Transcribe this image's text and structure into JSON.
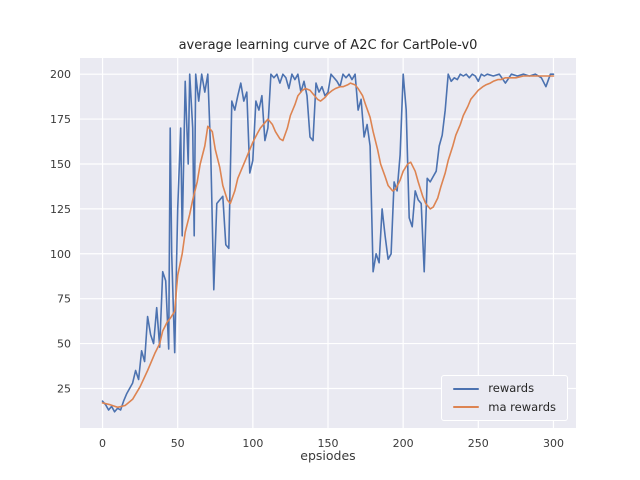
{
  "chart_data": {
    "type": "line",
    "title": "average learning curve of A2C for CartPole-v0",
    "xlabel": "epsiodes",
    "ylabel": "",
    "xlim": [
      -15,
      315
    ],
    "ylim": [
      3,
      209
    ],
    "xticks": [
      0,
      50,
      100,
      150,
      200,
      250,
      300
    ],
    "yticks": [
      25,
      50,
      75,
      100,
      125,
      150,
      175,
      200
    ],
    "grid": true,
    "legend_position": "lower right",
    "background_color": "#eaeaf2",
    "grid_color": "#ffffff",
    "series": [
      {
        "name": "rewards",
        "color": "#4c72b0",
        "points": [
          [
            0,
            18
          ],
          [
            2,
            16
          ],
          [
            4,
            13
          ],
          [
            6,
            15
          ],
          [
            8,
            12
          ],
          [
            10,
            14
          ],
          [
            12,
            13
          ],
          [
            14,
            18
          ],
          [
            16,
            22
          ],
          [
            18,
            25
          ],
          [
            20,
            28
          ],
          [
            22,
            35
          ],
          [
            24,
            30
          ],
          [
            26,
            46
          ],
          [
            28,
            40
          ],
          [
            30,
            65
          ],
          [
            32,
            55
          ],
          [
            34,
            50
          ],
          [
            36,
            70
          ],
          [
            38,
            48
          ],
          [
            40,
            90
          ],
          [
            42,
            85
          ],
          [
            44,
            47
          ],
          [
            45,
            170
          ],
          [
            46,
            100
          ],
          [
            48,
            45
          ],
          [
            50,
            125
          ],
          [
            52,
            170
          ],
          [
            53,
            110
          ],
          [
            55,
            196
          ],
          [
            57,
            150
          ],
          [
            58,
            200
          ],
          [
            60,
            170
          ],
          [
            61,
            110
          ],
          [
            62,
            200
          ],
          [
            64,
            185
          ],
          [
            66,
            200
          ],
          [
            68,
            190
          ],
          [
            70,
            200
          ],
          [
            72,
            155
          ],
          [
            74,
            80
          ],
          [
            76,
            128
          ],
          [
            78,
            130
          ],
          [
            80,
            132
          ],
          [
            82,
            105
          ],
          [
            84,
            103
          ],
          [
            86,
            185
          ],
          [
            88,
            180
          ],
          [
            90,
            188
          ],
          [
            92,
            195
          ],
          [
            94,
            185
          ],
          [
            96,
            190
          ],
          [
            98,
            145
          ],
          [
            100,
            152
          ],
          [
            102,
            185
          ],
          [
            104,
            180
          ],
          [
            106,
            188
          ],
          [
            108,
            163
          ],
          [
            110,
            170
          ],
          [
            112,
            200
          ],
          [
            114,
            198
          ],
          [
            116,
            200
          ],
          [
            118,
            195
          ],
          [
            120,
            200
          ],
          [
            122,
            198
          ],
          [
            124,
            192
          ],
          [
            126,
            200
          ],
          [
            128,
            197
          ],
          [
            130,
            200
          ],
          [
            132,
            190
          ],
          [
            134,
            196
          ],
          [
            136,
            188
          ],
          [
            138,
            165
          ],
          [
            140,
            163
          ],
          [
            142,
            195
          ],
          [
            144,
            190
          ],
          [
            146,
            193
          ],
          [
            148,
            188
          ],
          [
            150,
            190
          ],
          [
            152,
            200
          ],
          [
            154,
            198
          ],
          [
            156,
            196
          ],
          [
            158,
            193
          ],
          [
            160,
            200
          ],
          [
            162,
            198
          ],
          [
            164,
            200
          ],
          [
            166,
            197
          ],
          [
            168,
            200
          ],
          [
            170,
            180
          ],
          [
            172,
            186
          ],
          [
            174,
            165
          ],
          [
            176,
            172
          ],
          [
            178,
            160
          ],
          [
            180,
            90
          ],
          [
            182,
            100
          ],
          [
            184,
            95
          ],
          [
            186,
            125
          ],
          [
            188,
            110
          ],
          [
            190,
            97
          ],
          [
            192,
            100
          ],
          [
            194,
            140
          ],
          [
            196,
            135
          ],
          [
            198,
            155
          ],
          [
            200,
            200
          ],
          [
            202,
            180
          ],
          [
            204,
            120
          ],
          [
            206,
            115
          ],
          [
            208,
            135
          ],
          [
            210,
            130
          ],
          [
            212,
            128
          ],
          [
            214,
            90
          ],
          [
            216,
            142
          ],
          [
            218,
            140
          ],
          [
            220,
            143
          ],
          [
            222,
            146
          ],
          [
            224,
            160
          ],
          [
            226,
            166
          ],
          [
            228,
            180
          ],
          [
            230,
            200
          ],
          [
            232,
            196
          ],
          [
            234,
            198
          ],
          [
            236,
            197
          ],
          [
            238,
            200
          ],
          [
            240,
            199
          ],
          [
            242,
            200
          ],
          [
            244,
            198
          ],
          [
            246,
            200
          ],
          [
            248,
            199
          ],
          [
            250,
            196
          ],
          [
            252,
            200
          ],
          [
            254,
            199
          ],
          [
            256,
            200
          ],
          [
            260,
            199
          ],
          [
            264,
            200
          ],
          [
            268,
            195
          ],
          [
            272,
            200
          ],
          [
            276,
            199
          ],
          [
            280,
            200
          ],
          [
            284,
            199
          ],
          [
            288,
            200
          ],
          [
            292,
            198
          ],
          [
            295,
            193
          ],
          [
            298,
            200
          ],
          [
            300,
            200
          ]
        ]
      },
      {
        "name": "ma rewards",
        "color": "#dd8452",
        "points": [
          [
            0,
            17
          ],
          [
            5,
            16
          ],
          [
            10,
            14.5
          ],
          [
            15,
            15.5
          ],
          [
            20,
            19
          ],
          [
            25,
            26
          ],
          [
            30,
            35
          ],
          [
            35,
            45
          ],
          [
            38,
            50
          ],
          [
            40,
            57
          ],
          [
            43,
            62
          ],
          [
            45,
            64
          ],
          [
            48,
            68
          ],
          [
            50,
            88
          ],
          [
            53,
            100
          ],
          [
            55,
            112
          ],
          [
            58,
            122
          ],
          [
            60,
            130
          ],
          [
            63,
            140
          ],
          [
            65,
            150
          ],
          [
            68,
            160
          ],
          [
            70,
            171
          ],
          [
            73,
            168
          ],
          [
            75,
            158
          ],
          [
            78,
            148
          ],
          [
            80,
            138
          ],
          [
            83,
            130
          ],
          [
            85,
            128
          ],
          [
            88,
            135
          ],
          [
            90,
            142
          ],
          [
            93,
            148
          ],
          [
            95,
            152
          ],
          [
            98,
            158
          ],
          [
            100,
            162
          ],
          [
            103,
            167
          ],
          [
            105,
            170
          ],
          [
            108,
            173
          ],
          [
            110,
            175
          ],
          [
            113,
            172
          ],
          [
            115,
            168
          ],
          [
            118,
            164
          ],
          [
            120,
            163
          ],
          [
            123,
            170
          ],
          [
            125,
            177
          ],
          [
            128,
            183
          ],
          [
            130,
            188
          ],
          [
            133,
            191
          ],
          [
            135,
            192
          ],
          [
            138,
            191
          ],
          [
            140,
            189
          ],
          [
            143,
            186
          ],
          [
            145,
            185
          ],
          [
            148,
            187
          ],
          [
            150,
            189
          ],
          [
            153,
            191
          ],
          [
            155,
            192
          ],
          [
            158,
            193
          ],
          [
            160,
            193
          ],
          [
            163,
            194
          ],
          [
            165,
            195
          ],
          [
            168,
            194
          ],
          [
            170,
            192
          ],
          [
            173,
            188
          ],
          [
            175,
            183
          ],
          [
            178,
            176
          ],
          [
            180,
            168
          ],
          [
            183,
            158
          ],
          [
            185,
            150
          ],
          [
            188,
            143
          ],
          [
            190,
            138
          ],
          [
            193,
            135
          ],
          [
            195,
            136
          ],
          [
            198,
            141
          ],
          [
            200,
            146
          ],
          [
            203,
            150
          ],
          [
            205,
            151
          ],
          [
            208,
            146
          ],
          [
            210,
            140
          ],
          [
            213,
            132
          ],
          [
            215,
            128
          ],
          [
            218,
            125
          ],
          [
            220,
            126
          ],
          [
            223,
            131
          ],
          [
            225,
            137
          ],
          [
            228,
            145
          ],
          [
            230,
            152
          ],
          [
            233,
            160
          ],
          [
            235,
            166
          ],
          [
            238,
            172
          ],
          [
            240,
            177
          ],
          [
            243,
            182
          ],
          [
            245,
            186
          ],
          [
            248,
            189
          ],
          [
            250,
            191
          ],
          [
            253,
            193
          ],
          [
            255,
            194
          ],
          [
            258,
            195
          ],
          [
            260,
            196
          ],
          [
            263,
            197
          ],
          [
            265,
            197
          ],
          [
            268,
            198
          ],
          [
            270,
            198
          ],
          [
            275,
            198
          ],
          [
            280,
            199
          ],
          [
            285,
            199
          ],
          [
            290,
            199
          ],
          [
            295,
            199
          ],
          [
            300,
            199
          ]
        ]
      }
    ]
  }
}
